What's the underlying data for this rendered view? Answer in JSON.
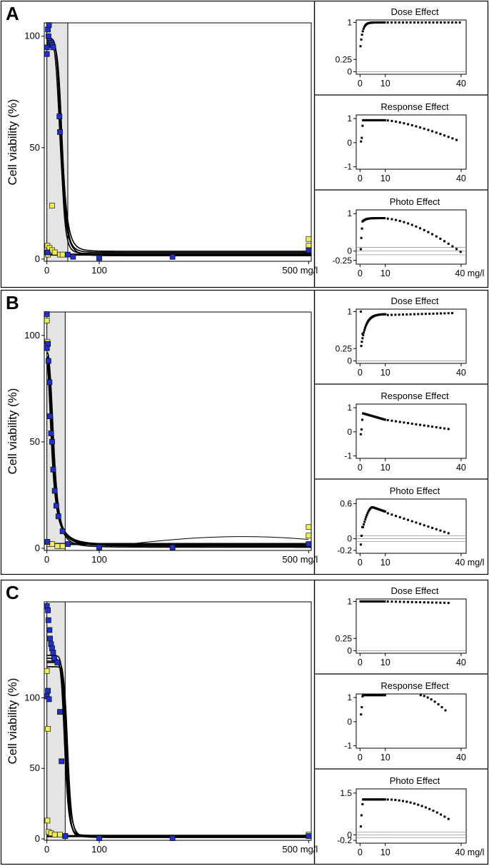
{
  "panels": [
    {
      "label": "A",
      "main": {
        "ylabel": "Cell viability (%)",
        "xunit": "mg/l",
        "xlim": [
          -5,
          505
        ],
        "ylim": [
          -1,
          106
        ],
        "xticks": [
          0,
          100,
          500
        ],
        "yticks": [
          0,
          50,
          100
        ],
        "shade": [
          0,
          40
        ],
        "blue_points": [
          [
            0,
            92
          ],
          [
            2,
            103
          ],
          [
            0,
            95
          ],
          [
            3,
            100
          ],
          [
            5,
            98
          ],
          [
            4,
            105
          ],
          [
            6,
            97
          ],
          [
            8,
            97
          ],
          [
            10,
            96
          ],
          [
            12,
            95
          ],
          [
            24,
            64
          ],
          [
            25,
            57
          ],
          [
            40,
            2
          ],
          [
            50,
            1
          ],
          [
            100,
            0.5
          ],
          [
            500,
            4
          ],
          [
            240,
            1
          ],
          [
            1,
            3
          ]
        ],
        "yellow_points": [
          [
            1,
            6
          ],
          [
            5,
            5
          ],
          [
            10,
            4
          ],
          [
            10,
            24
          ],
          [
            15,
            3
          ],
          [
            25,
            2
          ],
          [
            30,
            2
          ],
          [
            500,
            9
          ],
          [
            500,
            6
          ],
          [
            2,
            2
          ]
        ],
        "curves": [
          {
            "top": 98,
            "bottom": 3,
            "ec50": 28,
            "hill": 6
          },
          {
            "top": 97,
            "bottom": 2.5,
            "ec50": 27,
            "hill": 7
          },
          {
            "top": 99,
            "bottom": 3.5,
            "ec50": 29,
            "hill": 5.5
          },
          {
            "top": 96,
            "bottom": 2,
            "ec50": 30,
            "hill": 6.5
          },
          {
            "top": 98,
            "bottom": 1.5,
            "ec50": 26,
            "hill": 5
          }
        ]
      },
      "insets": [
        {
          "title": "Dose Effect",
          "ylim": [
            -0.05,
            1.05
          ],
          "yticks": [
            0,
            0.25,
            1
          ],
          "xticks": [
            0,
            10,
            40
          ],
          "xunit": "",
          "hlines": [
            0
          ],
          "curve": "dose_a"
        },
        {
          "title": "Response Effect",
          "ylim": [
            -1.1,
            1.15
          ],
          "yticks": [
            -1,
            0,
            1
          ],
          "xticks": [
            0,
            10,
            40
          ],
          "xunit": "",
          "hlines": [],
          "curve": "resp_a"
        },
        {
          "title": "Photo Effect",
          "ylim": [
            -0.35,
            1.1
          ],
          "yticks": [
            -0.25,
            0,
            1
          ],
          "xticks": [
            0,
            10,
            40
          ],
          "xunit": "mg/l",
          "hlines": [
            0.1,
            0,
            -0.1
          ],
          "curve": "photo_a"
        }
      ]
    },
    {
      "label": "B",
      "main": {
        "ylabel": "Cell viability (%)",
        "xunit": "mg/l",
        "xlim": [
          -5,
          505
        ],
        "ylim": [
          -1,
          111
        ],
        "xticks": [
          0,
          100,
          500
        ],
        "yticks": [
          0,
          50,
          100
        ],
        "shade": [
          0,
          35
        ],
        "blue_points": [
          [
            0,
            110
          ],
          [
            2,
            96
          ],
          [
            0,
            94
          ],
          [
            3,
            88
          ],
          [
            5,
            78
          ],
          [
            6,
            62
          ],
          [
            8,
            54
          ],
          [
            10,
            50
          ],
          [
            12,
            37
          ],
          [
            15,
            27
          ],
          [
            18,
            20
          ],
          [
            22,
            15
          ],
          [
            30,
            8
          ],
          [
            40,
            2
          ],
          [
            100,
            0.5
          ],
          [
            240,
            0.5
          ],
          [
            500,
            2
          ],
          [
            1,
            3
          ]
        ],
        "yellow_points": [
          [
            0,
            107
          ],
          [
            1,
            97
          ],
          [
            0,
            3
          ],
          [
            5,
            2
          ],
          [
            10,
            2
          ],
          [
            20,
            1
          ],
          [
            30,
            1
          ],
          [
            500,
            10
          ],
          [
            500,
            6
          ]
        ],
        "curves": [
          {
            "top": 90,
            "bottom": 1,
            "ec50": 12,
            "hill": 2.5
          },
          {
            "top": 88,
            "bottom": 1.5,
            "ec50": 11,
            "hill": 2.2
          },
          {
            "top": 92,
            "bottom": 0.5,
            "ec50": 13,
            "hill": 2.8
          },
          {
            "top": 86,
            "bottom": 1,
            "ec50": 10,
            "hill": 2.1
          },
          {
            "top": 89,
            "bottom": 2,
            "ec50": 14,
            "hill": 3
          }
        ]
      },
      "insets": [
        {
          "title": "Dose Effect",
          "ylim": [
            -0.05,
            1.05
          ],
          "yticks": [
            0,
            0.25,
            1
          ],
          "xticks": [
            0,
            10,
            40
          ],
          "xunit": "",
          "hlines": [
            0
          ],
          "curve": "dose_b"
        },
        {
          "title": "Response Effect",
          "ylim": [
            -1.1,
            1.15
          ],
          "yticks": [
            -1,
            0,
            1
          ],
          "xticks": [
            0,
            10,
            40
          ],
          "xunit": "",
          "hlines": [],
          "curve": "resp_b"
        },
        {
          "title": "Photo Effect",
          "ylim": [
            -0.25,
            0.68
          ],
          "yticks": [
            -0.2,
            0,
            0.6
          ],
          "xticks": [
            0,
            10,
            40
          ],
          "xunit": "mg/l",
          "hlines": [
            0.05,
            0,
            -0.05
          ],
          "curve": "photo_b"
        }
      ]
    },
    {
      "label": "C",
      "main": {
        "ylabel": "Cell viability (%)",
        "xunit": "mg/l",
        "xlim": [
          -5,
          505
        ],
        "ylim": [
          -1,
          168
        ],
        "xticks": [
          0,
          100,
          500
        ],
        "yticks": [
          0,
          50,
          100
        ],
        "shade": [
          0,
          35
        ],
        "blue_points": [
          [
            0,
            165
          ],
          [
            2,
            162
          ],
          [
            3,
            155
          ],
          [
            5,
            148
          ],
          [
            6,
            142
          ],
          [
            8,
            138
          ],
          [
            10,
            135
          ],
          [
            12,
            132
          ],
          [
            14,
            128
          ],
          [
            0,
            101
          ],
          [
            2,
            105
          ],
          [
            4,
            99
          ],
          [
            20,
            125
          ],
          [
            25,
            90
          ],
          [
            28,
            55
          ],
          [
            35,
            2
          ],
          [
            100,
            0.5
          ],
          [
            240,
            0.5
          ],
          [
            500,
            2
          ]
        ],
        "yellow_points": [
          [
            0,
            119
          ],
          [
            2,
            78
          ],
          [
            1,
            13
          ],
          [
            3,
            5
          ],
          [
            8,
            4
          ],
          [
            15,
            3
          ],
          [
            25,
            3
          ],
          [
            35,
            2
          ],
          [
            500,
            3
          ]
        ],
        "curves": [
          {
            "top": 130,
            "bottom": 2,
            "ec50": 36,
            "hill": 10
          },
          {
            "top": 125,
            "bottom": 1.5,
            "ec50": 38,
            "hill": 12
          },
          {
            "top": 128,
            "bottom": 2.5,
            "ec50": 34,
            "hill": 9
          },
          {
            "top": 122,
            "bottom": 2,
            "ec50": 40,
            "hill": 11
          },
          {
            "top": 126,
            "bottom": 1,
            "ec50": 37,
            "hill": 8
          }
        ]
      },
      "insets": [
        {
          "title": "Dose Effect",
          "ylim": [
            -0.05,
            1.05
          ],
          "yticks": [
            0,
            0.25,
            1
          ],
          "xticks": [
            0,
            10,
            40
          ],
          "xunit": "",
          "hlines": [
            0
          ],
          "curve": "dose_c"
        },
        {
          "title": "Response Effect",
          "ylim": [
            -1.1,
            1.15
          ],
          "yticks": [
            -1,
            0,
            1
          ],
          "xticks": [
            0,
            10,
            40
          ],
          "xunit": "",
          "hlines": [],
          "curve": "resp_c"
        },
        {
          "title": "Photo Effect",
          "ylim": [
            -0.3,
            1.65
          ],
          "yticks": [
            -0.2,
            0,
            1.5
          ],
          "xticks": [
            0,
            10,
            40
          ],
          "xunit": "mg/l",
          "hlines": [
            0.1,
            0,
            -0.1
          ],
          "curve": "photo_c"
        }
      ]
    }
  ],
  "chart_data": [
    {
      "type": "scatter",
      "panel": "A",
      "ylabel": "Cell viability (%)",
      "xlabel": "mg/l",
      "series_colors": {
        "blue": "#1f2fd6",
        "yellow": "#f2ee4a"
      }
    },
    {
      "type": "scatter",
      "panel": "B",
      "ylabel": "Cell viability (%)",
      "xlabel": "mg/l"
    },
    {
      "type": "scatter",
      "panel": "C",
      "ylabel": "Cell viability (%)",
      "xlabel": "mg/l"
    }
  ],
  "colors": {
    "blue": "#1f2fd6",
    "yellow": "#f2ee4a",
    "shade": "#e4e4e4",
    "line": "#000000",
    "hline": "#9a9a9a"
  }
}
